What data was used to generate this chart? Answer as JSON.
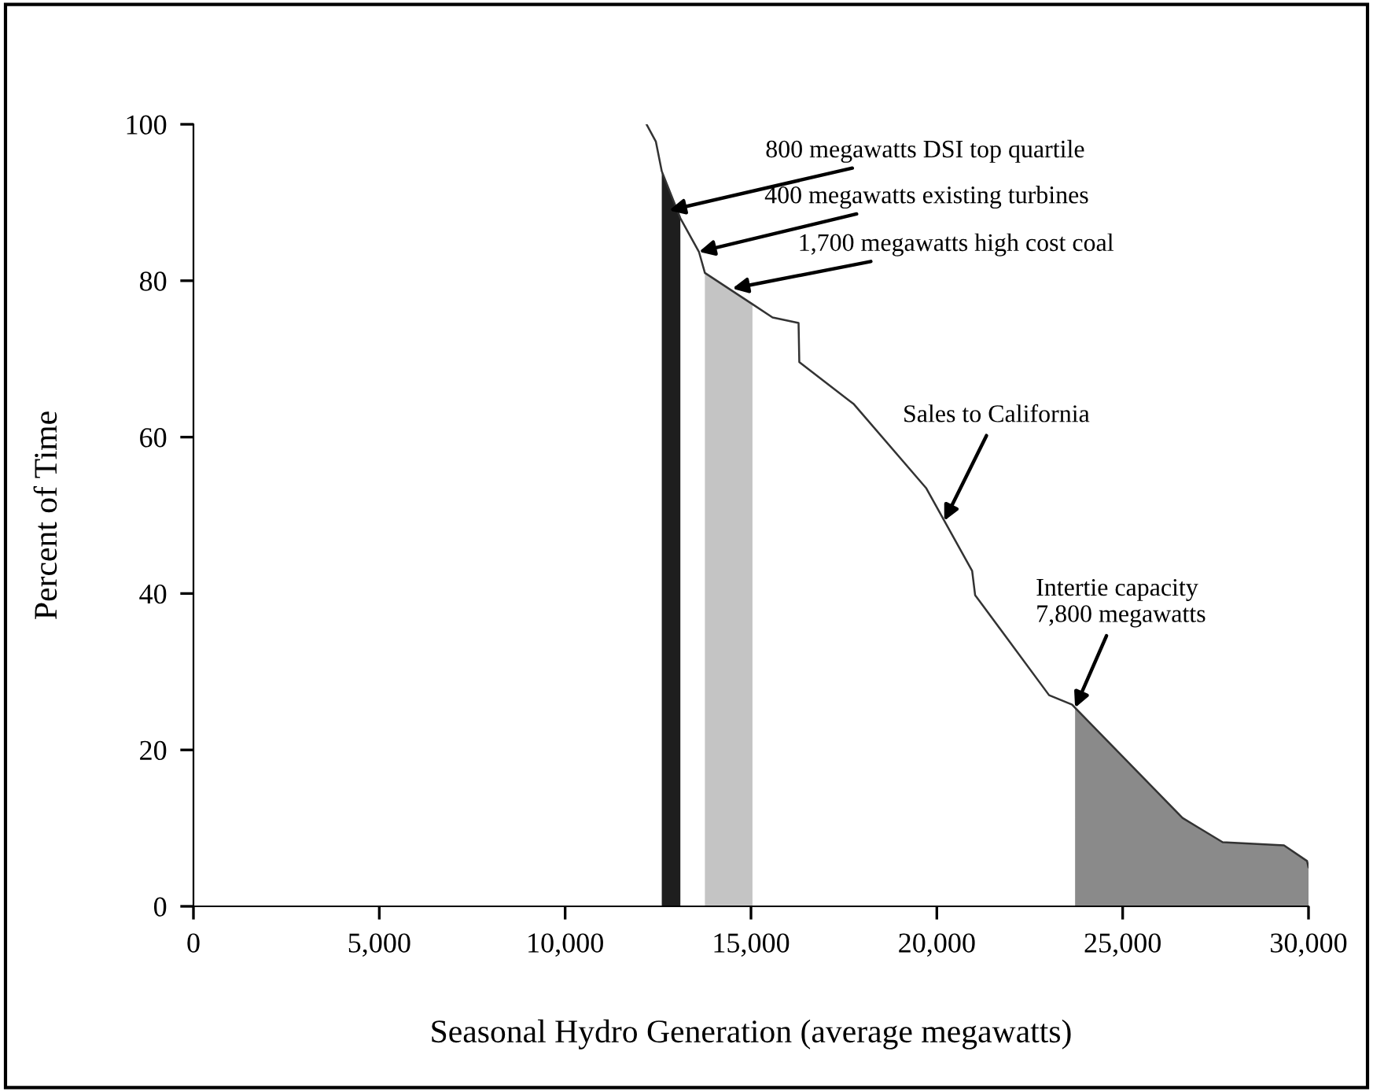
{
  "chart_data": {
    "type": "line",
    "xlabel": "Seasonal Hydro Generation (average megawatts)",
    "ylabel": "Percent of Time",
    "xlim": [
      0,
      30000
    ],
    "ylim": [
      0,
      100
    ],
    "xticks": [
      0,
      {
        "value": 5000,
        "label": "5,000"
      },
      {
        "value": 10000,
        "label": "10,000"
      },
      {
        "value": 15000,
        "label": "15,000"
      },
      {
        "value": 20000,
        "label": "20,000"
      },
      {
        "value": 25000,
        "label": "25,000"
      },
      {
        "value": 30000,
        "label": "30,000"
      }
    ],
    "yticks": [
      0,
      20,
      40,
      60,
      80,
      100
    ],
    "grid": false,
    "marker": "none",
    "line_style": "solid",
    "series": [
      {
        "type": "area",
        "color": "#1e1e1e",
        "x": [
          12600,
          13100
        ],
        "values": [
          94,
          88
        ]
      },
      {
        "type": "area",
        "color": "#c4c4c4",
        "x": [
          13760,
          15040
        ],
        "values": [
          81,
          77
        ]
      },
      {
        "type": "area",
        "color": "#8a8a8a",
        "x": [
          23720,
          26610,
          27690,
          29340,
          29960,
          30000
        ],
        "values": [
          25.4,
          11.3,
          8.2,
          7.8,
          5.8,
          5
        ]
      },
      {
        "color": "#333333",
        "x": [
          12190,
          12440,
          12600,
          13100,
          13600,
          13760,
          15040,
          15580,
          16280,
          16300,
          17770,
          19710,
          20950,
          21030,
          23020,
          23640,
          23720,
          26610,
          27690,
          29340,
          29960,
          30000
        ],
        "values": [
          100,
          97.8,
          94,
          88,
          83.7,
          81,
          77,
          75.3,
          74.6,
          69.6,
          64.2,
          53.5,
          42.9,
          39.8,
          27,
          25.8,
          25.4,
          11.3,
          8.2,
          7.8,
          5.8,
          5
        ]
      }
    ],
    "annotations": [
      {
        "text": "800 megawatts DSI top quartile",
        "x": 12800,
        "y": 89
      },
      {
        "text": "400 megawatts existing turbines",
        "x": 13600,
        "y": 83.7
      },
      {
        "text": "1,700 megawatts high cost coal",
        "x": 14500,
        "y": 79
      },
      {
        "text": "Sales to California",
        "x": 20200,
        "y": 49.3
      },
      {
        "text": "Intertie capacity\n7,800 megawatts",
        "x": 23720,
        "y": 25.4
      }
    ]
  }
}
